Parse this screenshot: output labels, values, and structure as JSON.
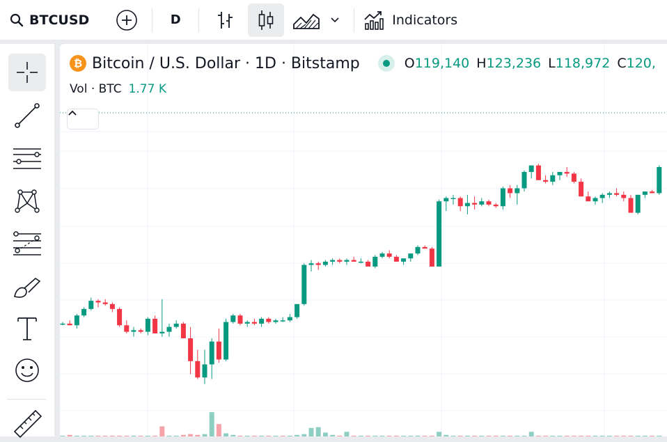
{
  "toolbar": {
    "symbol": "BTCUSD",
    "interval": "D",
    "indicators_label": "Indicators",
    "icons": [
      "search-icon",
      "add-symbol-icon",
      "bars-style-icon",
      "candles-style-icon",
      "area-style-icon",
      "chevron-down-icon",
      "indicators-icon"
    ]
  },
  "left_tools": [
    "crosshair-icon",
    "trend-line-icon",
    "horizontal-lines-icon",
    "pattern-icon",
    "fib-icon",
    "brush-icon",
    "text-icon",
    "emoji-icon",
    "ruler-icon"
  ],
  "legend": {
    "coin_glyph": "₿",
    "title": "Bitcoin / U.S. Dollar · 1D · Bitstamp",
    "open_label": "O",
    "open": "119,140",
    "high_label": "H",
    "high": "123,236",
    "low_label": "L",
    "low": "118,972",
    "close_label": "C",
    "close": "120,",
    "vol_label": "Vol · BTC",
    "vol_value": "1.77 K"
  },
  "colors": {
    "up": "#089981",
    "down": "#f23645",
    "up_vol": "#8fcfc3",
    "down_vol": "#f5a3a8"
  },
  "chart_data": {
    "type": "candlestick",
    "candles": [
      [
        100.5,
        101,
        100,
        100.5
      ],
      [
        100.5,
        101.5,
        100,
        100
      ],
      [
        100,
        103.5,
        99,
        103
      ],
      [
        103,
        105.5,
        102.5,
        105
      ],
      [
        105,
        108.5,
        104.5,
        107.5
      ],
      [
        107.5,
        108,
        105.5,
        107
      ],
      [
        107,
        108,
        106,
        106.5
      ],
      [
        106.5,
        107,
        104,
        105
      ],
      [
        105,
        105.5,
        99.5,
        100
      ],
      [
        100,
        101.5,
        97.5,
        98
      ],
      [
        98,
        99.5,
        96.5,
        98.5
      ],
      [
        98.5,
        99,
        97.5,
        98
      ],
      [
        98,
        102.5,
        97,
        102
      ],
      [
        102,
        103,
        97.5,
        97.5
      ],
      [
        97.5,
        108,
        96.5,
        98
      ],
      [
        98,
        100.5,
        96.5,
        99.5
      ],
      [
        99.5,
        101.5,
        99,
        100.5
      ],
      [
        100.5,
        101,
        96,
        96
      ],
      [
        96,
        99.5,
        85,
        89
      ],
      [
        89,
        92.5,
        83.5,
        84
      ],
      [
        84,
        92.5,
        82,
        88
      ],
      [
        88,
        96,
        83.5,
        95
      ],
      [
        95,
        99,
        88.5,
        89.5
      ],
      [
        89.5,
        102,
        89,
        101
      ],
      [
        101,
        103.5,
        100.5,
        103
      ],
      [
        103,
        103.5,
        100,
        100.5
      ],
      [
        100.5,
        101.5,
        99.5,
        101
      ],
      [
        101,
        102,
        100,
        100.5
      ],
      [
        100.5,
        102.5,
        99.5,
        102
      ],
      [
        102,
        102.5,
        100.5,
        101
      ],
      [
        101,
        102,
        100.5,
        101.5
      ],
      [
        101.5,
        102.5,
        101,
        101.5
      ],
      [
        101.5,
        103.5,
        101,
        102.5
      ],
      [
        102.5,
        106.5,
        102,
        106.5
      ],
      [
        106.5,
        119,
        106,
        118.5
      ],
      [
        118.5,
        120,
        116.5,
        119
      ],
      [
        119,
        119.5,
        117,
        118.5
      ],
      [
        118.5,
        120,
        118,
        119.5
      ],
      [
        119.5,
        120.5,
        118.5,
        120
      ],
      [
        120,
        120.5,
        119,
        119.5
      ],
      [
        119.5,
        120.5,
        118.5,
        120
      ],
      [
        120,
        121,
        119.5,
        119.5
      ],
      [
        119.5,
        120.5,
        119,
        119.5
      ],
      [
        119.5,
        120,
        118.5,
        118
      ],
      [
        118,
        121.5,
        117.5,
        121
      ],
      [
        121,
        122.5,
        120.5,
        122
      ],
      [
        122,
        123,
        120.5,
        121
      ],
      [
        121,
        121.5,
        119.5,
        119.5
      ],
      [
        119.5,
        120,
        118.5,
        120.5
      ],
      [
        120.5,
        122,
        119.5,
        122
      ],
      [
        122,
        124.5,
        121.5,
        124
      ],
      [
        124,
        124.5,
        123.5,
        123.5
      ],
      [
        123.5,
        124,
        118.5,
        118
      ],
      [
        118,
        138.5,
        118.5,
        138
      ],
      [
        138,
        139.5,
        135,
        139
      ],
      [
        139,
        140,
        137,
        139
      ],
      [
        139,
        139.5,
        135,
        136.5
      ],
      [
        136.5,
        140,
        134,
        137.5
      ],
      [
        137.5,
        139.5,
        135.5,
        137
      ],
      [
        137,
        139,
        136.5,
        138
      ],
      [
        138,
        138.5,
        136.5,
        137
      ],
      [
        137,
        137.5,
        136,
        136.5
      ],
      [
        136.5,
        142.5,
        135.5,
        142
      ],
      [
        142,
        143,
        139,
        140.5
      ],
      [
        140.5,
        143,
        137,
        142
      ],
      [
        142,
        147.5,
        141,
        147
      ],
      [
        147,
        149,
        145,
        149
      ],
      [
        149,
        149.5,
        144.5,
        144.5
      ],
      [
        144.5,
        146,
        143.5,
        144
      ],
      [
        144,
        147,
        143,
        146
      ],
      [
        146,
        147,
        144.5,
        147
      ],
      [
        147,
        148.5,
        145.5,
        146.5
      ],
      [
        146.5,
        147,
        143.5,
        144
      ],
      [
        144,
        145,
        139.5,
        139.5
      ],
      [
        139.5,
        141,
        138.5,
        138
      ],
      [
        138,
        139.5,
        137,
        139
      ],
      [
        139,
        140.5,
        137.5,
        140
      ],
      [
        140,
        141,
        139,
        140.5
      ],
      [
        140.5,
        142,
        139.5,
        140
      ],
      [
        140,
        141,
        138,
        139
      ],
      [
        139,
        140,
        134.5,
        134.5
      ],
      [
        134.5,
        140,
        134,
        140
      ],
      [
        140,
        141,
        139,
        141
      ],
      [
        141,
        141.5,
        140.5,
        140.5
      ],
      [
        140.5,
        149,
        140,
        148.5
      ]
    ],
    "volumes": [
      [
        0.05,
        1
      ],
      [
        0.1,
        0
      ],
      [
        0.05,
        1
      ],
      [
        0.05,
        1
      ],
      [
        0.05,
        1
      ],
      [
        0.05,
        0
      ],
      [
        0.05,
        0
      ],
      [
        0.05,
        0
      ],
      [
        0.05,
        0
      ],
      [
        0.05,
        0
      ],
      [
        0.05,
        1
      ],
      [
        0.05,
        0
      ],
      [
        0.05,
        1
      ],
      [
        0.05,
        0
      ],
      [
        0.65,
        0
      ],
      [
        0.05,
        1
      ],
      [
        0.05,
        1
      ],
      [
        0.1,
        0
      ],
      [
        0.15,
        0
      ],
      [
        0.1,
        0
      ],
      [
        0.15,
        1
      ],
      [
        1.57,
        1
      ],
      [
        0.8,
        0
      ],
      [
        0.2,
        1
      ],
      [
        0.1,
        1
      ],
      [
        0.05,
        0
      ],
      [
        0.05,
        1
      ],
      [
        0.05,
        0
      ],
      [
        0.05,
        1
      ],
      [
        0.05,
        0
      ],
      [
        0.05,
        1
      ],
      [
        0.05,
        0
      ],
      [
        0.05,
        1
      ],
      [
        0.1,
        1
      ],
      [
        0.15,
        1
      ],
      [
        0.55,
        1
      ],
      [
        0.6,
        1
      ],
      [
        0.25,
        1
      ],
      [
        0.1,
        1
      ],
      [
        0.05,
        0
      ],
      [
        0.3,
        1
      ],
      [
        0.05,
        0
      ],
      [
        0.05,
        1
      ],
      [
        0.05,
        0
      ],
      [
        0.05,
        1
      ],
      [
        0.05,
        1
      ],
      [
        0.05,
        0
      ],
      [
        0.05,
        0
      ],
      [
        0.05,
        1
      ],
      [
        0.05,
        1
      ],
      [
        0.05,
        1
      ],
      [
        0.05,
        0
      ],
      [
        0.05,
        0
      ],
      [
        0.3,
        1
      ],
      [
        0.1,
        1
      ],
      [
        0.05,
        1
      ],
      [
        0.05,
        0
      ],
      [
        0.05,
        1
      ],
      [
        0.05,
        0
      ],
      [
        0.05,
        1
      ],
      [
        0.05,
        0
      ],
      [
        0.05,
        0
      ],
      [
        0.05,
        1
      ],
      [
        0.05,
        0
      ],
      [
        0.05,
        1
      ],
      [
        0.05,
        1
      ],
      [
        0.3,
        1
      ],
      [
        0.05,
        0
      ],
      [
        0.05,
        0
      ],
      [
        0.05,
        1
      ],
      [
        0.05,
        1
      ],
      [
        0.05,
        0
      ],
      [
        0.05,
        0
      ],
      [
        0.05,
        0
      ],
      [
        0.05,
        0
      ],
      [
        0.05,
        1
      ],
      [
        0.05,
        1
      ],
      [
        0.05,
        1
      ],
      [
        0.05,
        0
      ],
      [
        0.05,
        0
      ],
      [
        0.05,
        0
      ],
      [
        0.05,
        1
      ],
      [
        0.05,
        1
      ],
      [
        0.05,
        0
      ],
      [
        0.05,
        1
      ]
    ],
    "ylim": [
      80,
      150
    ],
    "volume_max": 1.8,
    "grid": true,
    "price_line": 138.5
  }
}
